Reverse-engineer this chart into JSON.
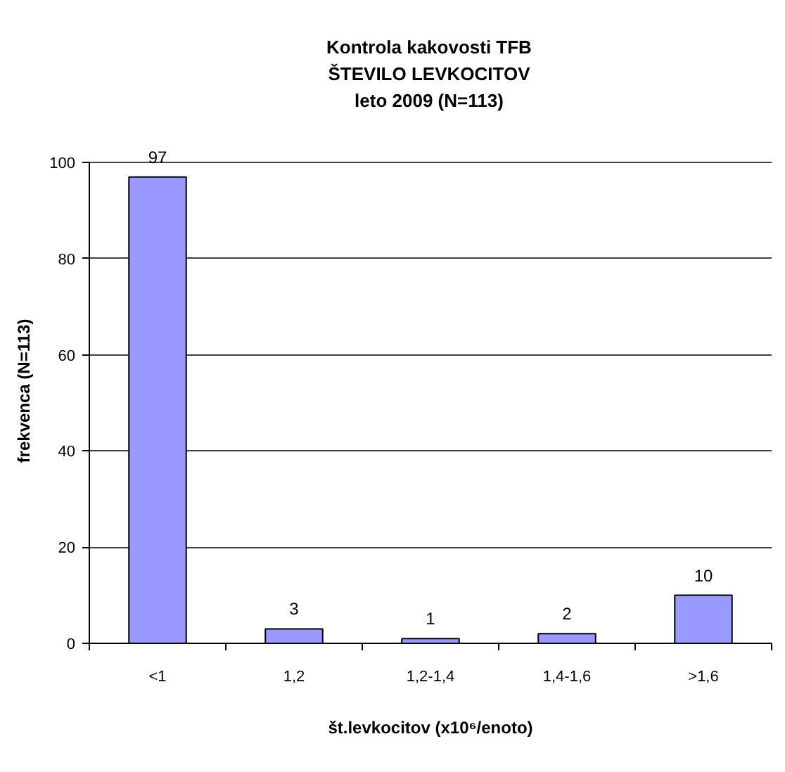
{
  "chart_data": {
    "type": "bar",
    "title": "Kontrola kakovosti TFB\nŠTEVILO LEVKOCITOV\nleto 2009 (N=113)",
    "xlabel": "št.levkocitov (x10⁶/enoto)",
    "ylabel": "frekvenca (N=113)",
    "categories": [
      "<1",
      "1,2",
      "1,2-1,4",
      "1,4-1,6",
      ">1,6"
    ],
    "values": [
      97,
      3,
      1,
      2,
      10
    ],
    "color": "#9999ff",
    "ylim": [
      0,
      100
    ],
    "yticks": [
      0,
      20,
      40,
      60,
      80,
      100
    ],
    "grid": "y",
    "data_labels": true
  }
}
